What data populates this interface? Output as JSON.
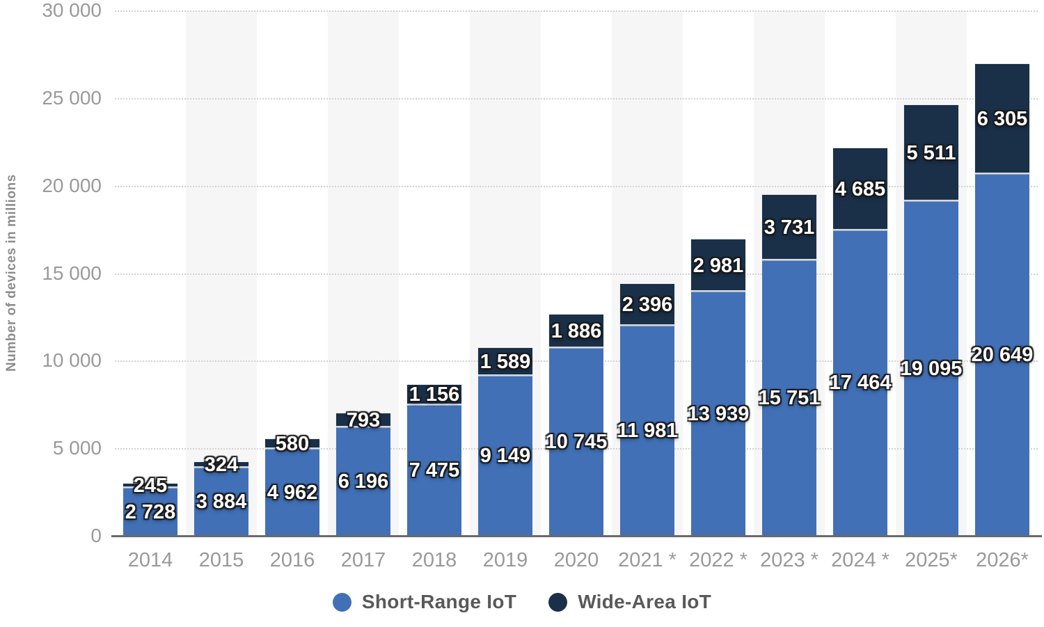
{
  "chart_data": {
    "type": "bar",
    "stacked": true,
    "title": "",
    "ylabel": "Number of devices in millions",
    "xlabel": "",
    "ylim": [
      0,
      30000
    ],
    "ytick_interval": 5000,
    "ytick_labels": [
      "0",
      "5 000",
      "10 000",
      "15 000",
      "20 000",
      "25 000",
      "30 000"
    ],
    "grid": "horizontal-dotted",
    "background_column_stripes": "alternate",
    "stripe_color": "#f6f6f6",
    "legend_position": "bottom",
    "categories": [
      "2014",
      "2015",
      "2016",
      "2017",
      "2018",
      "2019",
      "2020",
      "2021 *",
      "2022 *",
      "2023 *",
      "2024 *",
      "2025*",
      "2026*"
    ],
    "series": [
      {
        "name": "Short-Range IoT",
        "color": "#4170b6",
        "values": [
          2728,
          3884,
          4962,
          6196,
          7475,
          9149,
          10745,
          11981,
          13939,
          15751,
          17464,
          19095,
          20649
        ],
        "labels": [
          "2 728",
          "3 884",
          "4 962",
          "6 196",
          "7 475",
          "9 149",
          "10 745",
          "11 981",
          "13 939",
          "15 751",
          "17 464",
          "19 095",
          "20 649"
        ]
      },
      {
        "name": "Wide-Area IoT",
        "color": "#1a3049",
        "values": [
          245,
          324,
          580,
          793,
          1156,
          1589,
          1886,
          2396,
          2981,
          3731,
          4685,
          5511,
          6305
        ],
        "labels": [
          "245",
          "324",
          "580",
          "793",
          "1 156",
          "1 589",
          "1 886",
          "2 396",
          "2 981",
          "3 731",
          "4 685",
          "5 511",
          "6 305"
        ]
      }
    ]
  }
}
